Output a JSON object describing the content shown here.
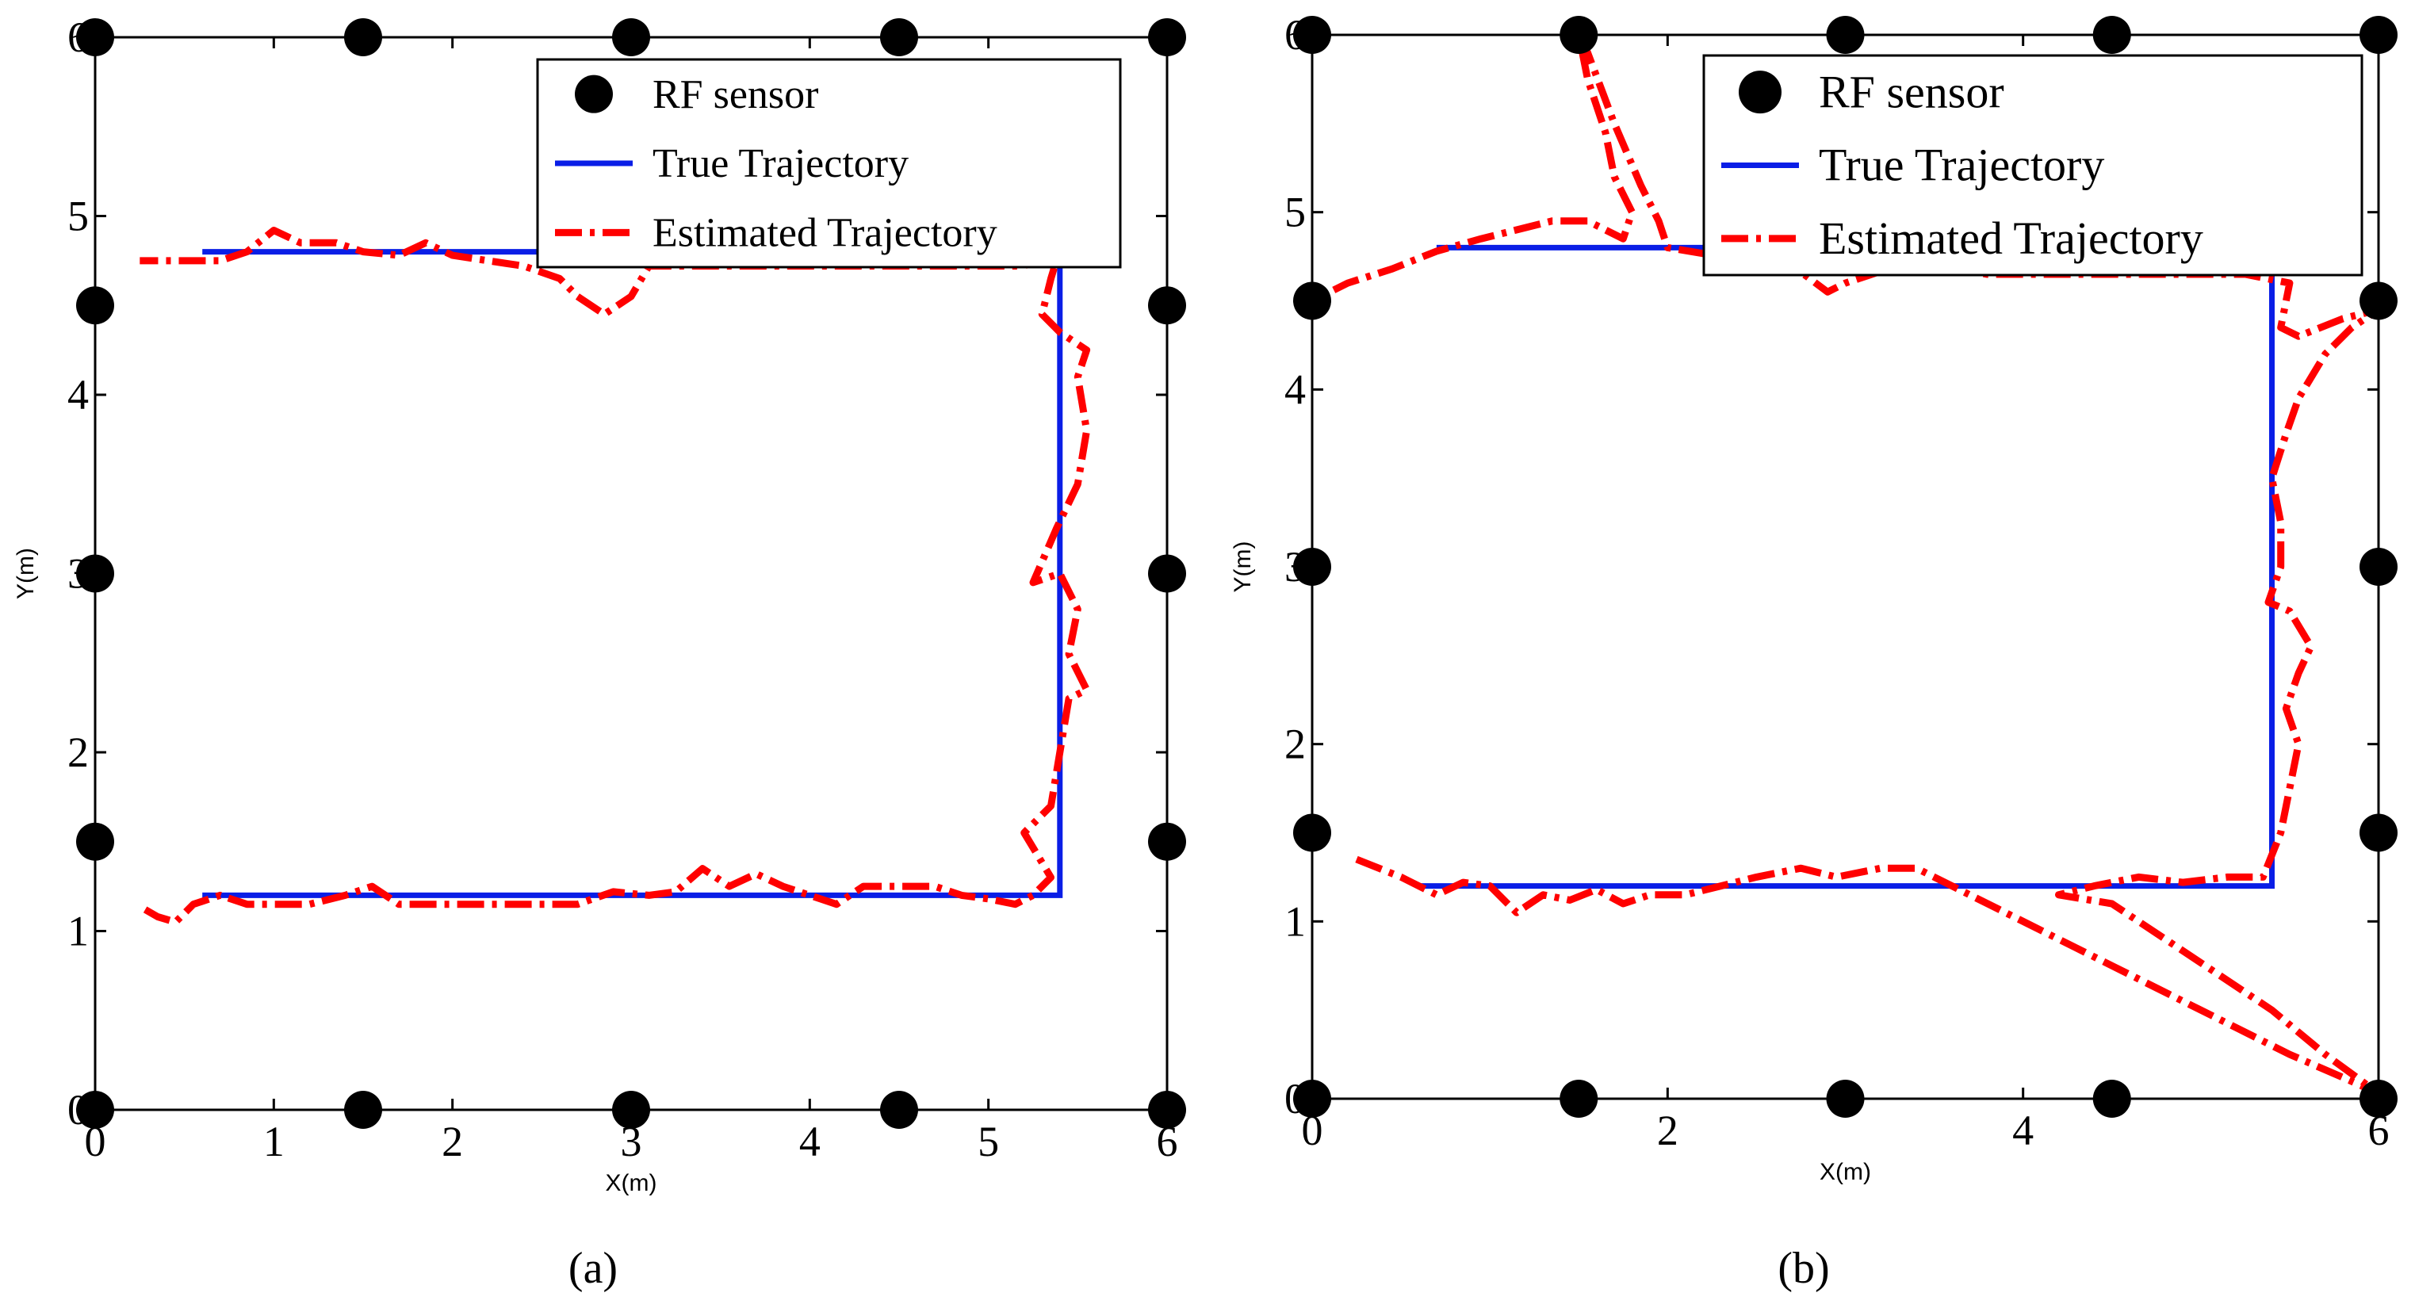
{
  "colors": {
    "sensor": "#000000",
    "true": "#0a1ee6",
    "estimated": "#ff0000",
    "axis": "#000000"
  },
  "chart_data": [
    {
      "id": "a",
      "type": "line",
      "caption": "(a)",
      "xlabel": "X(m)",
      "ylabel": "Y(m)",
      "xlim": [
        0,
        6
      ],
      "ylim": [
        0,
        6
      ],
      "xticks": [
        0,
        1,
        2,
        3,
        4,
        5,
        6
      ],
      "xtick_labels": [
        "0",
        "1",
        "2",
        "3",
        "4",
        "5",
        "6"
      ],
      "yticks": [
        0,
        1,
        2,
        3,
        4,
        5,
        6
      ],
      "ytick_labels": [
        "0",
        "1",
        "2",
        "3",
        "4",
        "5",
        "6"
      ],
      "legend": [
        "RF sensor",
        "True Trajectory",
        "Estimated Trajectory"
      ],
      "legend_position": "top-right",
      "sensors": [
        [
          0,
          6
        ],
        [
          1.5,
          6
        ],
        [
          3,
          6
        ],
        [
          4.5,
          6
        ],
        [
          6,
          6
        ],
        [
          0,
          4.5
        ],
        [
          6,
          4.5
        ],
        [
          0,
          3
        ],
        [
          6,
          3
        ],
        [
          0,
          1.5
        ],
        [
          6,
          1.5
        ],
        [
          0,
          0
        ],
        [
          1.5,
          0
        ],
        [
          3,
          0
        ],
        [
          4.5,
          0
        ],
        [
          6,
          0
        ]
      ],
      "true_trajectory": [
        [
          0.6,
          1.2
        ],
        [
          5.4,
          1.2
        ],
        [
          5.4,
          4.8
        ],
        [
          0.6,
          4.8
        ]
      ],
      "estimated_trajectory": [
        [
          0.28,
          1.12
        ],
        [
          0.35,
          1.08
        ],
        [
          0.45,
          1.05
        ],
        [
          0.55,
          1.15
        ],
        [
          0.7,
          1.2
        ],
        [
          0.85,
          1.15
        ],
        [
          1.0,
          1.15
        ],
        [
          1.2,
          1.15
        ],
        [
          1.4,
          1.2
        ],
        [
          1.55,
          1.25
        ],
        [
          1.7,
          1.15
        ],
        [
          1.9,
          1.15
        ],
        [
          2.1,
          1.15
        ],
        [
          2.3,
          1.15
        ],
        [
          2.5,
          1.15
        ],
        [
          2.7,
          1.15
        ],
        [
          2.9,
          1.22
        ],
        [
          3.1,
          1.2
        ],
        [
          3.25,
          1.22
        ],
        [
          3.4,
          1.35
        ],
        [
          3.55,
          1.25
        ],
        [
          3.7,
          1.32
        ],
        [
          3.85,
          1.25
        ],
        [
          4.0,
          1.2
        ],
        [
          4.15,
          1.15
        ],
        [
          4.3,
          1.25
        ],
        [
          4.5,
          1.25
        ],
        [
          4.7,
          1.25
        ],
        [
          4.85,
          1.2
        ],
        [
          5.0,
          1.18
        ],
        [
          5.15,
          1.15
        ],
        [
          5.25,
          1.2
        ],
        [
          5.35,
          1.3
        ],
        [
          5.2,
          1.55
        ],
        [
          5.35,
          1.7
        ],
        [
          5.4,
          2.0
        ],
        [
          5.45,
          2.3
        ],
        [
          5.55,
          2.35
        ],
        [
          5.45,
          2.55
        ],
        [
          5.5,
          2.8
        ],
        [
          5.4,
          3.0
        ],
        [
          5.25,
          2.95
        ],
        [
          5.38,
          3.25
        ],
        [
          5.5,
          3.5
        ],
        [
          5.55,
          3.8
        ],
        [
          5.5,
          4.1
        ],
        [
          5.55,
          4.25
        ],
        [
          5.4,
          4.35
        ],
        [
          5.3,
          4.45
        ],
        [
          5.35,
          4.65
        ],
        [
          5.38,
          4.75
        ],
        [
          5.35,
          4.8
        ],
        [
          5.2,
          4.72
        ],
        [
          4.7,
          4.72
        ],
        [
          4.0,
          4.72
        ],
        [
          3.4,
          4.72
        ],
        [
          3.1,
          4.72
        ],
        [
          3.0,
          4.55
        ],
        [
          2.85,
          4.45
        ],
        [
          2.7,
          4.55
        ],
        [
          2.6,
          4.65
        ],
        [
          2.4,
          4.72
        ],
        [
          2.2,
          4.75
        ],
        [
          2.0,
          4.78
        ],
        [
          1.85,
          4.85
        ],
        [
          1.7,
          4.78
        ],
        [
          1.5,
          4.8
        ],
        [
          1.35,
          4.85
        ],
        [
          1.15,
          4.85
        ],
        [
          1.0,
          4.92
        ],
        [
          0.85,
          4.8
        ],
        [
          0.7,
          4.75
        ],
        [
          0.5,
          4.75
        ],
        [
          0.25,
          4.75
        ]
      ]
    },
    {
      "id": "b",
      "type": "line",
      "caption": "(b)",
      "xlabel": "X(m)",
      "ylabel": "Y(m)",
      "xlim": [
        0,
        6
      ],
      "ylim": [
        0,
        6
      ],
      "xticks": [
        0,
        2,
        4,
        6
      ],
      "xtick_labels": [
        "0",
        "2",
        "4",
        "6"
      ],
      "yticks": [
        0,
        1,
        2,
        3,
        4,
        5,
        6
      ],
      "ytick_labels": [
        "0",
        "1",
        "2",
        "3",
        "4",
        "5",
        "6"
      ],
      "legend": [
        "RF sensor",
        "True Trajectory",
        "Estimated Trajectory"
      ],
      "legend_position": "top-right",
      "sensors": [
        [
          0,
          6
        ],
        [
          1.5,
          6
        ],
        [
          3,
          6
        ],
        [
          4.5,
          6
        ],
        [
          6,
          6
        ],
        [
          0,
          4.5
        ],
        [
          6,
          4.5
        ],
        [
          0,
          3
        ],
        [
          6,
          3
        ],
        [
          0,
          1.5
        ],
        [
          6,
          1.5
        ],
        [
          0,
          0
        ],
        [
          1.5,
          0
        ],
        [
          3,
          0
        ],
        [
          4.5,
          0
        ],
        [
          6,
          0
        ]
      ],
      "true_trajectory": [
        [
          0.6,
          1.2
        ],
        [
          5.4,
          1.2
        ],
        [
          5.4,
          4.8
        ],
        [
          0.7,
          4.8
        ]
      ],
      "estimated_trajectory": [
        [
          0.25,
          1.35
        ],
        [
          0.5,
          1.25
        ],
        [
          0.7,
          1.15
        ],
        [
          0.85,
          1.22
        ],
        [
          1.0,
          1.2
        ],
        [
          1.15,
          1.05
        ],
        [
          1.3,
          1.15
        ],
        [
          1.45,
          1.12
        ],
        [
          1.6,
          1.18
        ],
        [
          1.75,
          1.1
        ],
        [
          1.9,
          1.15
        ],
        [
          2.1,
          1.15
        ],
        [
          2.3,
          1.2
        ],
        [
          2.5,
          1.25
        ],
        [
          2.75,
          1.3
        ],
        [
          2.95,
          1.25
        ],
        [
          3.2,
          1.3
        ],
        [
          3.4,
          1.3
        ],
        [
          3.7,
          1.15
        ],
        [
          4.0,
          1.0
        ],
        [
          4.3,
          0.85
        ],
        [
          4.6,
          0.7
        ],
        [
          4.9,
          0.55
        ],
        [
          5.2,
          0.4
        ],
        [
          5.5,
          0.25
        ],
        [
          5.8,
          0.12
        ],
        [
          6.0,
          0.03
        ],
        [
          5.7,
          0.25
        ],
        [
          5.4,
          0.5
        ],
        [
          5.1,
          0.7
        ],
        [
          4.8,
          0.9
        ],
        [
          4.5,
          1.1
        ],
        [
          4.2,
          1.15
        ],
        [
          4.4,
          1.2
        ],
        [
          4.65,
          1.25
        ],
        [
          4.9,
          1.22
        ],
        [
          5.15,
          1.25
        ],
        [
          5.35,
          1.25
        ],
        [
          5.45,
          1.5
        ],
        [
          5.5,
          1.75
        ],
        [
          5.55,
          2.0
        ],
        [
          5.48,
          2.2
        ],
        [
          5.55,
          2.4
        ],
        [
          5.62,
          2.55
        ],
        [
          5.5,
          2.75
        ],
        [
          5.38,
          2.8
        ],
        [
          5.45,
          3.0
        ],
        [
          5.45,
          3.25
        ],
        [
          5.4,
          3.5
        ],
        [
          5.48,
          3.75
        ],
        [
          5.55,
          3.95
        ],
        [
          5.7,
          4.2
        ],
        [
          5.85,
          4.35
        ],
        [
          6.0,
          4.45
        ],
        [
          5.8,
          4.4
        ],
        [
          5.55,
          4.3
        ],
        [
          5.45,
          4.35
        ],
        [
          5.5,
          4.6
        ],
        [
          5.25,
          4.65
        ],
        [
          4.6,
          4.65
        ],
        [
          3.8,
          4.65
        ],
        [
          3.5,
          4.7
        ],
        [
          3.3,
          4.7
        ],
        [
          3.0,
          4.6
        ],
        [
          2.9,
          4.55
        ],
        [
          2.7,
          4.7
        ],
        [
          2.3,
          4.75
        ],
        [
          2.0,
          4.8
        ],
        [
          1.95,
          4.95
        ],
        [
          1.85,
          5.15
        ],
        [
          1.7,
          5.5
        ],
        [
          1.55,
          5.9
        ],
        [
          1.5,
          6.0
        ],
        [
          1.55,
          5.75
        ],
        [
          1.65,
          5.45
        ],
        [
          1.7,
          5.2
        ],
        [
          1.8,
          5.0
        ],
        [
          1.75,
          4.85
        ],
        [
          1.55,
          4.95
        ],
        [
          1.35,
          4.95
        ],
        [
          1.15,
          4.9
        ],
        [
          0.95,
          4.85
        ],
        [
          0.7,
          4.78
        ],
        [
          0.45,
          4.68
        ],
        [
          0.2,
          4.6
        ],
        [
          0.0,
          4.5
        ]
      ]
    }
  ]
}
